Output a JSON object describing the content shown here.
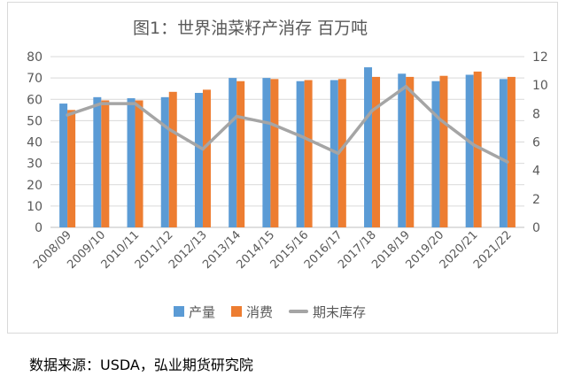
{
  "chart_data": {
    "type": "bar",
    "title": "图1：世界油菜籽产消存 百万吨",
    "categories": [
      "2008/09",
      "2009/10",
      "2010/11",
      "2011/12",
      "2012/13",
      "2013/14",
      "2014/15",
      "2015/16",
      "2016/17",
      "2017/18",
      "2018/19",
      "2019/20",
      "2020/21",
      "2021/22"
    ],
    "series": [
      {
        "name": "产量",
        "type": "bar",
        "axis": "left",
        "color": "#5B9BD5",
        "values": [
          58,
          61,
          60.5,
          61,
          63,
          70,
          70,
          68.5,
          69,
          75,
          72,
          68.5,
          71.5,
          69.5
        ]
      },
      {
        "name": "消费",
        "type": "bar",
        "axis": "left",
        "color": "#ED7D31",
        "values": [
          55,
          59.5,
          59.5,
          63.5,
          64.5,
          68.5,
          69.5,
          69,
          69.5,
          70.5,
          70.5,
          71,
          73,
          70.5
        ]
      },
      {
        "name": "期末库存",
        "type": "line",
        "axis": "right",
        "color": "#A5A5A5",
        "values": [
          7.9,
          8.7,
          8.7,
          6.9,
          5.5,
          7.8,
          7.3,
          6.3,
          5.2,
          8.2,
          9.9,
          7.6,
          5.8,
          4.6
        ]
      }
    ],
    "ylim": [
      0,
      80
    ],
    "yticks": [
      0,
      10,
      20,
      30,
      40,
      50,
      60,
      70,
      80
    ],
    "y2lim": [
      0,
      12
    ],
    "y2ticks": [
      0,
      2,
      4,
      6,
      8,
      10,
      12
    ],
    "grid": true,
    "legend": "bottom"
  },
  "source": "数据来源：USDA，弘业期货研究院"
}
